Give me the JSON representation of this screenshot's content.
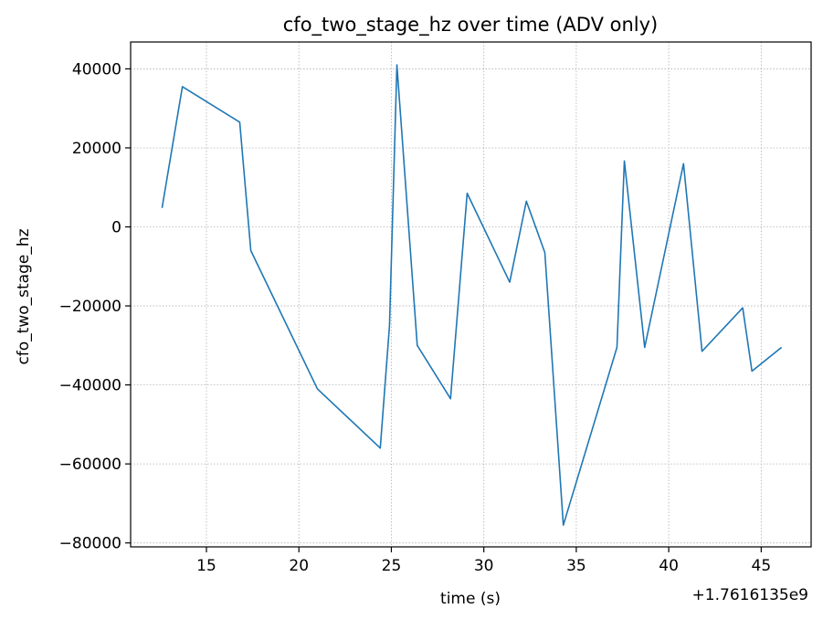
{
  "chart_data": {
    "type": "line",
    "title": "cfo_two_stage_hz over time (ADV only)",
    "xlabel": "time (s)",
    "ylabel": "cfo_two_stage_hz",
    "x_offset_label": "+1.7616135e9",
    "xlim": [
      10.9,
      47.7
    ],
    "ylim": [
      -81000,
      46800
    ],
    "x_ticks": [
      15,
      20,
      25,
      30,
      35,
      40,
      45
    ],
    "y_ticks": [
      40000,
      20000,
      0,
      -20000,
      -40000,
      -60000,
      -80000
    ],
    "x_tick_labels": [
      "15",
      "20",
      "25",
      "30",
      "35",
      "40",
      "45"
    ],
    "y_tick_labels": [
      "40000",
      "20000",
      "0",
      "−20000",
      "−40000",
      "−60000",
      "−80000"
    ],
    "grid": true,
    "line_color": "#1f77b4",
    "series": [
      {
        "x": [
          12.6,
          13.7,
          16.8,
          17.4,
          21.0,
          24.4,
          24.9,
          25.3,
          26.4,
          28.2,
          29.1,
          31.4,
          32.3,
          33.3,
          34.3,
          37.2,
          37.6,
          38.7,
          40.8,
          41.8,
          44.0,
          44.5,
          46.1
        ],
        "y": [
          4800,
          35500,
          26500,
          -6000,
          -41000,
          -56000,
          -25000,
          41000,
          -30000,
          -43500,
          8500,
          -14000,
          6500,
          -6500,
          -75500,
          -30500,
          16700,
          -30500,
          16000,
          -31500,
          -20500,
          -36500,
          -30500
        ]
      }
    ]
  }
}
